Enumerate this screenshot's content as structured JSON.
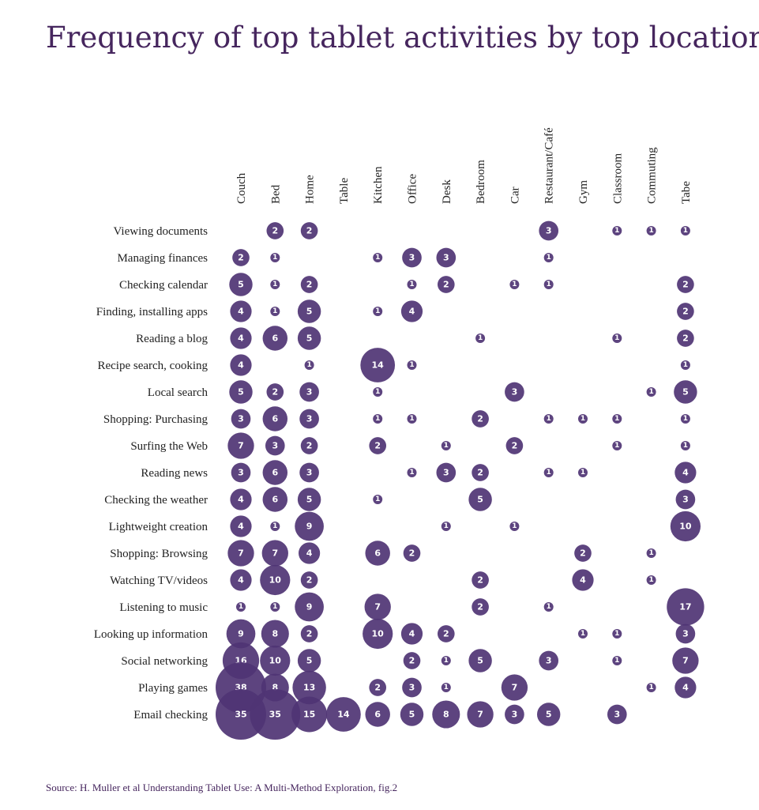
{
  "chart_data": {
    "type": "bubble-matrix",
    "title": "Frequency of top tablet activities by top locations",
    "source": "Source: H. Muller et al Understanding Tablet Use: A Multi-Method Exploration, fig.2",
    "columns": [
      "Couch",
      "Bed",
      "Home",
      "Table",
      "Kitchen",
      "Office",
      "Desk",
      "Bedroom",
      "Car",
      "Restaurant/Café",
      "Gym",
      "Classroom",
      "Commuting",
      "Tabe"
    ],
    "rows": [
      "Viewing documents",
      "Managing finances",
      "Checking calendar",
      "Finding, installing apps",
      "Reading a blog",
      "Recipe search, cooking",
      "Local search",
      "Shopping: Purchasing",
      "Surfing the Web",
      "Reading news",
      "Checking the weather",
      "Lightweight creation",
      "Shopping: Browsing",
      "Watching TV/videos",
      "Listening to music",
      "Looking up information",
      "Social networking",
      "Playing games",
      "Email checking"
    ],
    "values": [
      [
        null,
        2,
        2,
        null,
        null,
        null,
        null,
        null,
        null,
        3,
        null,
        1,
        1,
        1
      ],
      [
        2,
        1,
        null,
        null,
        1,
        3,
        3,
        null,
        null,
        1,
        null,
        null,
        null,
        null
      ],
      [
        5,
        1,
        2,
        null,
        null,
        1,
        2,
        null,
        1,
        1,
        null,
        null,
        null,
        2
      ],
      [
        4,
        1,
        5,
        null,
        1,
        4,
        null,
        null,
        null,
        null,
        null,
        null,
        null,
        2
      ],
      [
        4,
        6,
        5,
        null,
        null,
        null,
        null,
        1,
        null,
        null,
        null,
        1,
        null,
        2
      ],
      [
        4,
        null,
        1,
        null,
        14,
        1,
        null,
        null,
        null,
        null,
        null,
        null,
        null,
        1
      ],
      [
        5,
        2,
        3,
        null,
        1,
        null,
        null,
        null,
        3,
        null,
        null,
        null,
        1,
        5
      ],
      [
        3,
        6,
        3,
        null,
        1,
        1,
        null,
        2,
        null,
        1,
        1,
        1,
        null,
        1
      ],
      [
        7,
        3,
        2,
        null,
        2,
        null,
        1,
        null,
        2,
        null,
        null,
        1,
        null,
        1
      ],
      [
        3,
        6,
        3,
        null,
        null,
        1,
        3,
        2,
        null,
        1,
        1,
        null,
        null,
        4
      ],
      [
        4,
        6,
        5,
        null,
        1,
        null,
        null,
        5,
        null,
        null,
        null,
        null,
        null,
        3
      ],
      [
        4,
        1,
        9,
        null,
        null,
        null,
        1,
        null,
        1,
        null,
        null,
        null,
        null,
        10
      ],
      [
        7,
        7,
        4,
        null,
        6,
        2,
        null,
        null,
        null,
        null,
        2,
        null,
        1,
        null
      ],
      [
        4,
        10,
        2,
        null,
        null,
        null,
        null,
        2,
        null,
        null,
        4,
        null,
        1,
        null
      ],
      [
        1,
        1,
        9,
        null,
        7,
        null,
        null,
        2,
        null,
        1,
        null,
        null,
        null,
        17
      ],
      [
        9,
        8,
        2,
        null,
        10,
        4,
        2,
        null,
        null,
        null,
        1,
        1,
        null,
        3
      ],
      [
        16,
        10,
        5,
        null,
        null,
        2,
        1,
        5,
        null,
        3,
        null,
        1,
        null,
        7
      ],
      [
        38,
        8,
        13,
        null,
        2,
        3,
        1,
        null,
        7,
        null,
        null,
        null,
        1,
        4
      ],
      [
        35,
        35,
        15,
        14,
        6,
        5,
        8,
        7,
        3,
        5,
        null,
        3,
        null,
        null
      ]
    ]
  },
  "colors": {
    "bubble": "#4f3474",
    "title": "#46265e",
    "label": "#222222",
    "bubble_text": "#ffffff"
  }
}
